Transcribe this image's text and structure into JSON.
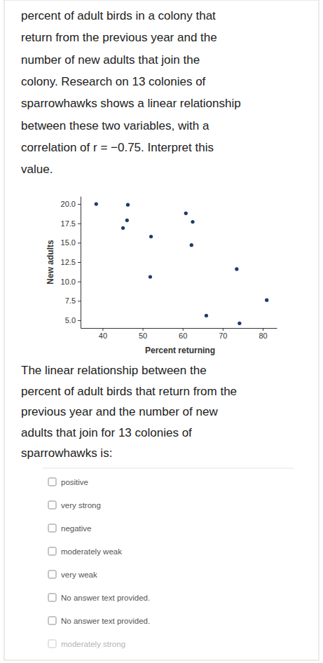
{
  "question": {
    "lines": [
      "percent of adult birds in a colony that",
      "return from the previous year and the",
      "number of new adults that join the",
      "colony. Research on 13 colonies of",
      "sparrowhawks shows a linear relationship",
      "between these two variables, with a",
      "correlation of r = −0.75. Interpret this",
      "value."
    ]
  },
  "chart_data": {
    "type": "scatter",
    "x_label": "Percent returning",
    "y_label": "New adults",
    "x": [
      38.4,
      46.3,
      46.1,
      45.1,
      52.1,
      60.8,
      62.5,
      62.2,
      51.9,
      73.5,
      81.0,
      65.9,
      74.2
    ],
    "values": [
      20.0,
      19.9,
      17.9,
      16.9,
      15.8,
      18.8,
      17.7,
      14.7,
      10.6,
      11.6,
      7.6,
      5.6,
      4.6
    ],
    "color": "#1f3a6e",
    "marker": "circle",
    "grid": false,
    "xlim": [
      34.5,
      83.5
    ],
    "ylim": [
      4,
      21
    ],
    "xticks": [
      40,
      50,
      60,
      70,
      80
    ],
    "yticks": [
      {
        "value": 20,
        "label": "20.0"
      },
      17.5,
      {
        "value": 15,
        "label": "15.0"
      },
      12.5,
      {
        "value": 10,
        "label": "10.0"
      },
      7.5,
      {
        "value": 5,
        "label": "5.0"
      }
    ]
  },
  "prompt": {
    "lines": [
      "The linear relationship between the",
      "percent of adult birds that return from the",
      "previous year and the number of new",
      "adults that join for 13 colonies of",
      "sparrowhawks is:"
    ]
  },
  "options": [
    "positive",
    "very strong",
    "negative",
    "moderately weak",
    "very weak",
    "No answer text provided.",
    "No answer text provided.",
    "moderately strong"
  ]
}
